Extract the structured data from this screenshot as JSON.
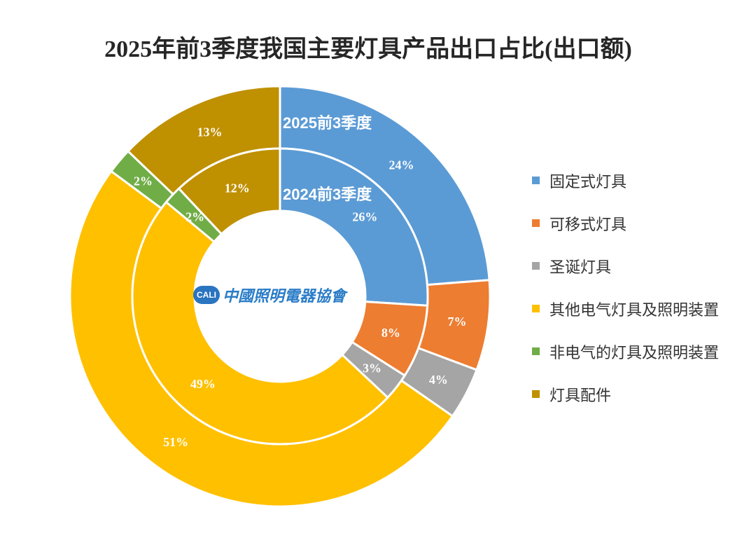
{
  "logo": {
    "badge": "CALI",
    "text": "中國照明電器協會"
  },
  "chart_data": {
    "type": "pie",
    "title": "2025年前3季度我国主要灯具产品出口占比(出口额)",
    "categories": [
      "固定式灯具",
      "可移式灯具",
      "圣诞灯具",
      "其他电气灯具及照明装置",
      "非电气的灯具及照明装置",
      "灯具配件"
    ],
    "colors": [
      "#5B9BD5",
      "#ED7D31",
      "#A5A5A5",
      "#FFC000",
      "#70AD47",
      "#BF9000"
    ],
    "series": [
      {
        "name": "2025前3季度",
        "values": [
          24,
          7,
          4,
          51,
          2,
          13
        ],
        "labels": [
          "24%",
          "7%",
          "4%",
          "51%",
          "2%",
          "13%"
        ]
      },
      {
        "name": "2024前3季度",
        "values": [
          26,
          8,
          3,
          49,
          2,
          12
        ],
        "labels": [
          "26%",
          "8%",
          "3%",
          "49%",
          "2%",
          "12%"
        ]
      }
    ],
    "legend_position": "right"
  }
}
